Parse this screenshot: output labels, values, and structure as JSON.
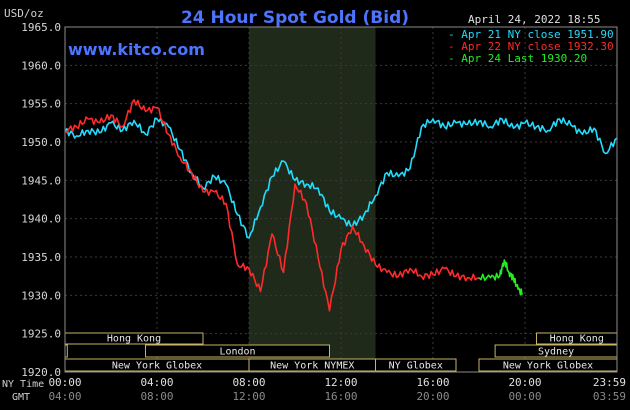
{
  "header": {
    "unit": "USD/oz",
    "title": "24 Hour Spot Gold (Bid)",
    "date": "April 24, 2022 18:55",
    "watermark": "www.kitco.com"
  },
  "legend": [
    {
      "label": "- Apr 21 NY close 1951.90",
      "color": "#22ddff"
    },
    {
      "label": "- Apr 22 NY close 1932.30",
      "color": "#ff2a2a"
    },
    {
      "label": "- Apr 24 Last 1930.20",
      "color": "#22ee22"
    }
  ],
  "x_axis": {
    "row1_label": "NY Time",
    "row2_label": "GMT",
    "ny_ticks": [
      "00:00",
      "04:00",
      "08:00",
      "12:00",
      "16:00",
      "20:00",
      "23:59"
    ],
    "gmt_ticks": [
      "04:00",
      "08:00",
      "12:00",
      "16:00",
      "20:00",
      "00:00",
      "03:59"
    ]
  },
  "sessions": {
    "left": {
      "row1": "Hong Kong",
      "row2": "London",
      "row3a": "New York Globex",
      "row3b": "New York NYMEX",
      "row3c": "NY Globex"
    },
    "right": {
      "row1": "Hong Kong",
      "row2": "Sydney",
      "row3": "New York Globex"
    }
  },
  "chart_data": {
    "type": "line",
    "title": "24 Hour Spot Gold (Bid)",
    "ylabel": "USD/oz",
    "xlabel": "NY Time",
    "xlim": [
      0,
      24
    ],
    "ylim": [
      1920,
      1965
    ],
    "yticks": [
      1920,
      1925,
      1930,
      1935,
      1940,
      1945,
      1950,
      1955,
      1960,
      1965
    ],
    "yticklabels": [
      "1920.0",
      "1925.0",
      "1930.0",
      "1935.0",
      "1940.0",
      "1945.0",
      "1950.0",
      "1955.0",
      "1960.0",
      "1965.0"
    ],
    "grid": true,
    "legend_position": "top-right",
    "highlight_band": [
      8.0,
      13.5
    ],
    "series": [
      {
        "name": "Apr 21 NY close 1951.90",
        "color": "#22ddff",
        "x": [
          0.0,
          0.5,
          1.0,
          1.5,
          2.0,
          2.5,
          3.0,
          3.5,
          4.0,
          4.5,
          5.0,
          5.5,
          6.0,
          6.5,
          7.0,
          7.5,
          8.0,
          8.5,
          9.0,
          9.5,
          10.0,
          10.5,
          11.0,
          11.5,
          12.0,
          12.5,
          13.0,
          13.5,
          14.0,
          14.5,
          15.0,
          15.5,
          16.0,
          16.5,
          17.0,
          17.5,
          18.0,
          18.5,
          19.0,
          19.5,
          20.0,
          20.5,
          21.0,
          21.5,
          22.0,
          22.5,
          23.0,
          23.5,
          24.0
        ],
        "values": [
          1951.5,
          1950.8,
          1951.5,
          1951.2,
          1952.5,
          1951.5,
          1952.8,
          1951.0,
          1953.0,
          1952.0,
          1949.0,
          1946.0,
          1944.0,
          1945.5,
          1944.5,
          1940.5,
          1937.5,
          1941.5,
          1945.5,
          1947.5,
          1945.0,
          1944.5,
          1944.0,
          1941.0,
          1940.0,
          1939.0,
          1940.5,
          1943.0,
          1946.0,
          1945.5,
          1946.5,
          1952.0,
          1953.0,
          1952.0,
          1952.5,
          1952.3,
          1952.7,
          1952.0,
          1953.0,
          1951.8,
          1952.5,
          1952.0,
          1951.5,
          1953.0,
          1952.2,
          1951.0,
          1951.8,
          1948.5,
          1950.5
        ]
      },
      {
        "name": "Apr 22 NY close 1932.30",
        "color": "#ff2a2a",
        "x": [
          0.0,
          0.5,
          1.0,
          1.5,
          2.0,
          2.5,
          3.0,
          3.5,
          4.0,
          4.5,
          5.0,
          5.5,
          6.0,
          6.5,
          7.0,
          7.5,
          8.0,
          8.5,
          9.0,
          9.5,
          10.0,
          10.5,
          11.0,
          11.5,
          12.0,
          12.5,
          13.0,
          13.5,
          14.0,
          14.5,
          15.0,
          15.5,
          16.0,
          16.5,
          17.0,
          17.5,
          18.0
        ],
        "values": [
          1951.5,
          1952.0,
          1953.0,
          1952.5,
          1953.5,
          1952.0,
          1955.5,
          1954.0,
          1954.5,
          1951.0,
          1948.0,
          1946.0,
          1943.5,
          1943.5,
          1942.0,
          1934.0,
          1933.5,
          1930.5,
          1938.0,
          1933.0,
          1944.5,
          1942.0,
          1935.0,
          1928.0,
          1936.0,
          1939.0,
          1936.5,
          1934.0,
          1933.0,
          1932.5,
          1933.5,
          1932.5,
          1932.7,
          1933.5,
          1932.5,
          1932.3,
          1932.3
        ]
      },
      {
        "name": "Apr 24 Last 1930.20",
        "color": "#22ee22",
        "x": [
          18.0,
          18.5,
          18.9,
          19.1,
          19.3,
          19.5,
          19.7,
          19.9
        ],
        "values": [
          1932.3,
          1932.3,
          1932.5,
          1934.6,
          1933.0,
          1932.2,
          1930.8,
          1930.2
        ]
      }
    ]
  }
}
